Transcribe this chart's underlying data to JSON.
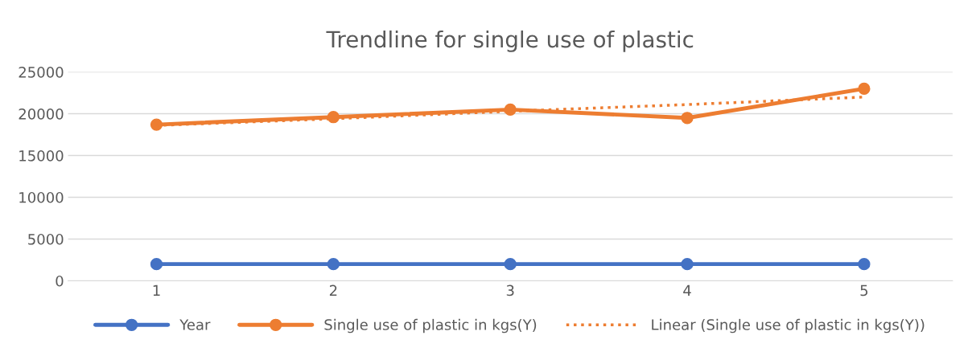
{
  "chart_data": {
    "type": "line",
    "title": "Trendline for single use of plastic",
    "categories": [
      "1",
      "2",
      "3",
      "4",
      "5"
    ],
    "series": [
      {
        "name": "Year",
        "color": "#4472c4",
        "values": [
          2000,
          2000,
          2000,
          2000,
          2000
        ],
        "marker": "circle",
        "line_style": "solid"
      },
      {
        "name": "Single use of plastic in kgs(Y)",
        "color": "#ed7d31",
        "values": [
          18700,
          19600,
          20500,
          19500,
          23000
        ],
        "marker": "circle",
        "line_style": "solid"
      },
      {
        "name": "Linear (Single use of plastic in kgs(Y))",
        "color": "#ed7d31",
        "values": [
          18600,
          19400,
          20300,
          21100,
          22000
        ],
        "marker": "none",
        "line_style": "dotted"
      }
    ],
    "ylim": [
      0,
      25000
    ],
    "yticks": [
      0,
      5000,
      10000,
      15000,
      20000,
      25000
    ],
    "grid": "y",
    "legend": "bottom"
  }
}
